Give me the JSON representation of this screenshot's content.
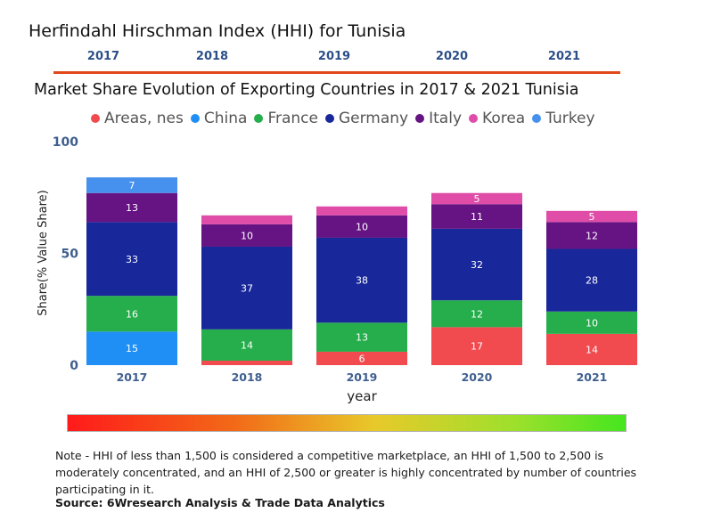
{
  "hhi_title": "Herfindahl Hirschman Index (HHI) for Tunisia",
  "timeline_years": [
    "2017",
    "2018",
    "2019",
    "2020",
    "2021"
  ],
  "chart_title": "Market Share Evolution of Exporting Countries in 2017 & 2021 Tunisia",
  "note": "Note - HHI of less than 1,500 is considered a competitive marketplace, an HHI of 1,500 to 2,500 is moderately concentrated, and an HHI of 2,500 or greater is highly concentrated by number of countries participating in it.",
  "source": "Source: 6Wresearch Analysis & Trade Data Analytics",
  "colors": {
    "timeline_line": "#e1481b",
    "year_text": "#2c4f88",
    "axis_text": "#3f5f8f"
  },
  "chart_data": {
    "type": "bar",
    "stacked": true,
    "xlabel": "year",
    "ylabel": "Share(% Value Share)",
    "ylim": [
      0,
      100
    ],
    "yticks": [
      0,
      50,
      100
    ],
    "categories": [
      "2017",
      "2018",
      "2019",
      "2020",
      "2021"
    ],
    "series": [
      {
        "name": "Areas, nes",
        "color": "#f14a4f",
        "values": [
          0,
          2,
          6,
          17,
          14
        ],
        "labels": [
          "",
          "",
          "6",
          "17",
          "14"
        ]
      },
      {
        "name": "China",
        "color": "#1f8ff5",
        "values": [
          15,
          0,
          0,
          0,
          0
        ],
        "labels": [
          "15",
          "",
          "",
          "",
          ""
        ]
      },
      {
        "name": "France",
        "color": "#25ae4b",
        "values": [
          16,
          14,
          13,
          12,
          10
        ],
        "labels": [
          "16",
          "14",
          "13",
          "12",
          "10"
        ]
      },
      {
        "name": "Germany",
        "color": "#18279a",
        "values": [
          33,
          37,
          38,
          32,
          28
        ],
        "labels": [
          "33",
          "37",
          "38",
          "32",
          "28"
        ]
      },
      {
        "name": "Italy",
        "color": "#661383",
        "values": [
          13,
          10,
          10,
          11,
          12
        ],
        "labels": [
          "13",
          "10",
          "10",
          "11",
          "12"
        ]
      },
      {
        "name": "Korea",
        "color": "#df4da8",
        "values": [
          0,
          4,
          4,
          5,
          5
        ],
        "labels": [
          "",
          "",
          "",
          "5",
          "5"
        ]
      },
      {
        "name": "Turkey",
        "color": "#4691ee",
        "values": [
          7,
          0,
          0,
          0,
          0
        ],
        "labels": [
          "7",
          "",
          "",
          "",
          ""
        ]
      }
    ]
  }
}
